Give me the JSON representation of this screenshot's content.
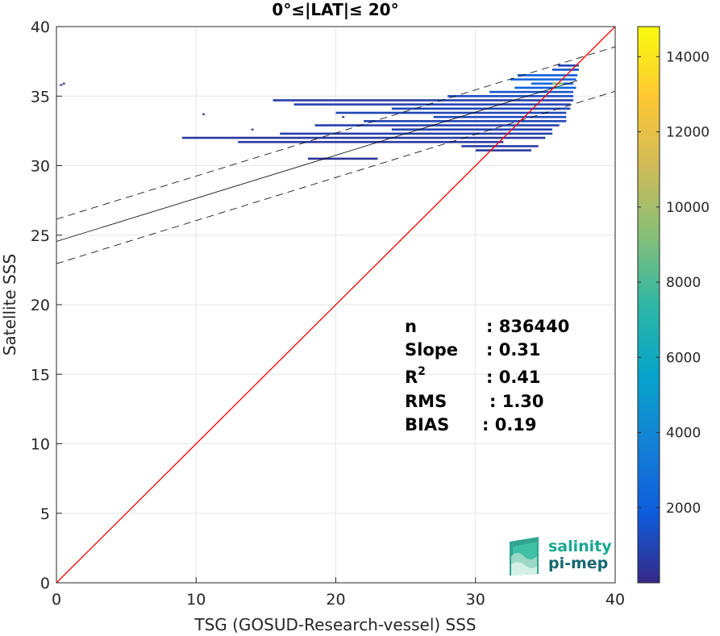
{
  "chart_data": {
    "type": "heatmap",
    "title": "0°≤|LAT|≤ 20°",
    "xlabel": "TSG (GOSUD-Research-vessel) SSS",
    "ylabel": "Satellite SSS",
    "xlim": [
      0,
      40
    ],
    "ylim": [
      0,
      40
    ],
    "xticks": [
      "0",
      "10",
      "20",
      "30",
      "40"
    ],
    "yticks": [
      "0",
      "5",
      "10",
      "15",
      "20",
      "25",
      "30",
      "35",
      "40"
    ],
    "grid": true,
    "colorbar": {
      "range": [
        0,
        14800
      ],
      "ticks": [
        "2000",
        "4000",
        "6000",
        "8000",
        "10000",
        "12000",
        "14000"
      ],
      "colormap": "parula"
    },
    "regression": {
      "slope": 0.31,
      "intercept": 24.55,
      "band_offset": 1.6
    },
    "identity_line": {
      "color": "#ff0000"
    },
    "density_rows": [
      {
        "y": 37.2,
        "x0": 35.9,
        "x1": 37.4,
        "c": 900
      },
      {
        "y": 36.9,
        "x0": 35.5,
        "x1": 37.4,
        "c": 1400
      },
      {
        "y": 36.5,
        "x0": 33.0,
        "x1": 37.3,
        "c": 1800
      },
      {
        "y": 36.2,
        "x0": 32.5,
        "x1": 37.2,
        "c": 2200
      },
      {
        "y": 35.9,
        "x0": 34.0,
        "x1": 37.0,
        "c": 2600
      },
      {
        "y": 35.6,
        "x0": 32.8,
        "x1": 37.2,
        "c": 2000
      },
      {
        "y": 35.3,
        "x0": 31.0,
        "x1": 37.0,
        "c": 1500
      },
      {
        "y": 35.0,
        "x0": 28.0,
        "x1": 37.0,
        "c": 1200
      },
      {
        "y": 34.7,
        "x0": 15.5,
        "x1": 37.0,
        "c": 700
      },
      {
        "y": 34.4,
        "x0": 17.0,
        "x1": 36.8,
        "c": 900
      },
      {
        "y": 34.1,
        "x0": 24.0,
        "x1": 36.8,
        "c": 1100
      },
      {
        "y": 33.8,
        "x0": 20.0,
        "x1": 36.5,
        "c": 1000
      },
      {
        "y": 33.5,
        "x0": 27.0,
        "x1": 36.5,
        "c": 1200
      },
      {
        "y": 33.2,
        "x0": 22.0,
        "x1": 36.5,
        "c": 1000
      },
      {
        "y": 32.9,
        "x0": 18.5,
        "x1": 36.0,
        "c": 800
      },
      {
        "y": 32.6,
        "x0": 24.0,
        "x1": 35.5,
        "c": 900
      },
      {
        "y": 32.3,
        "x0": 16.0,
        "x1": 35.5,
        "c": 700
      },
      {
        "y": 32.0,
        "x0": 9.0,
        "x1": 35.0,
        "c": 500
      },
      {
        "y": 31.7,
        "x0": 13.0,
        "x1": 32.0,
        "c": 500
      },
      {
        "y": 31.4,
        "x0": 29.0,
        "x1": 34.5,
        "c": 600
      },
      {
        "y": 31.1,
        "x0": 30.0,
        "x1": 34.0,
        "c": 500
      },
      {
        "y": 30.5,
        "x0": 18.0,
        "x1": 23.0,
        "c": 400
      },
      {
        "y": 35.9,
        "x0": 35.5,
        "x1": 36.3,
        "c": 9000
      },
      {
        "y": 35.6,
        "x0": 35.6,
        "x1": 36.1,
        "c": 5000
      }
    ],
    "isolated_points": [
      {
        "x": 0.5,
        "y": 35.9
      },
      {
        "x": 0.3,
        "y": 35.8
      },
      {
        "x": 10.5,
        "y": 33.7
      },
      {
        "x": 18.5,
        "y": 31.7
      },
      {
        "x": 20.5,
        "y": 33.5
      },
      {
        "x": 14.0,
        "y": 32.6
      }
    ]
  },
  "stats": [
    {
      "key": "n",
      "value": ": 836440"
    },
    {
      "key": "Slope",
      "value": ": 0.31"
    },
    {
      "key": "R",
      "sup": "2",
      "value": ": 0.41"
    },
    {
      "key": "RMS",
      "value": ": 1.30"
    },
    {
      "key": "BIAS",
      "value": ": 0.19"
    }
  ],
  "logo": {
    "line1": "salinity",
    "line2": "pi-mep"
  }
}
